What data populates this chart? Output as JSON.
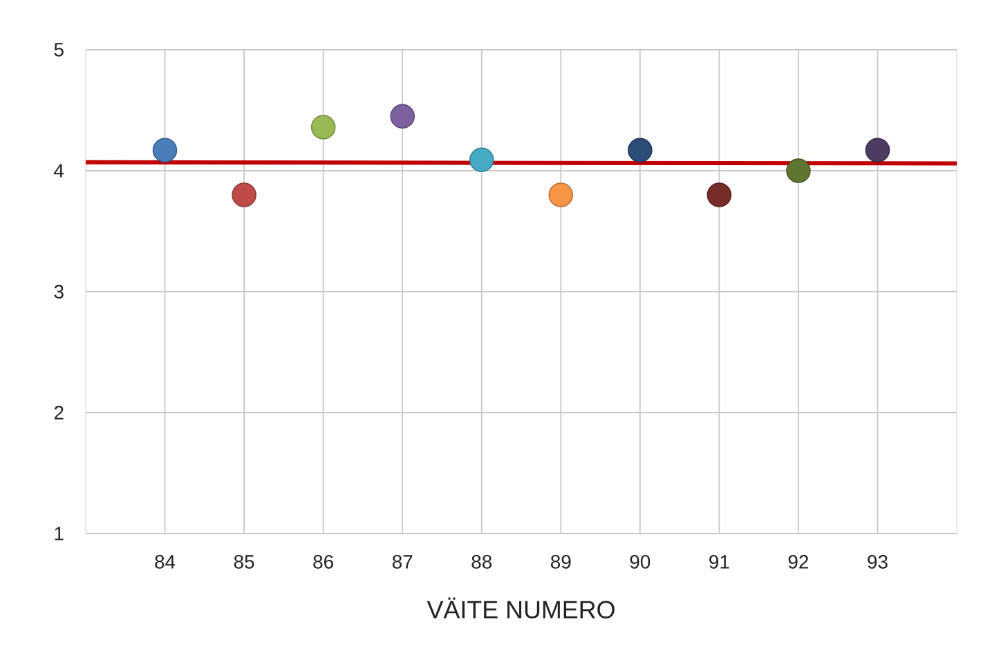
{
  "chart_data": {
    "type": "scatter",
    "xlabel": "VÄITE NUMERO",
    "xlim": [
      83,
      94
    ],
    "xticks": [
      84,
      85,
      86,
      87,
      88,
      89,
      90,
      91,
      92,
      93
    ],
    "ylim": [
      1,
      5
    ],
    "yticks": [
      1,
      2,
      3,
      4,
      5
    ],
    "grid": true,
    "series": [
      {
        "marker": "circle",
        "x": [
          84,
          85,
          86,
          87,
          88,
          89,
          90,
          91,
          92,
          93
        ],
        "values": [
          4.17,
          3.8,
          4.36,
          4.45,
          4.09,
          3.8,
          4.17,
          3.8,
          4.0,
          4.17
        ],
        "colors": [
          "#4a7ebb",
          "#be4b48",
          "#98b954",
          "#7d60a0",
          "#46aac5",
          "#f69546",
          "#2c4d75",
          "#772c2a",
          "#5f7530",
          "#4d3b62"
        ]
      },
      {
        "type": "line",
        "x": [
          83,
          94
        ],
        "values": [
          4.07,
          4.06
        ],
        "color": "#c00000",
        "line_style": "solid",
        "marker": "none"
      }
    ]
  }
}
